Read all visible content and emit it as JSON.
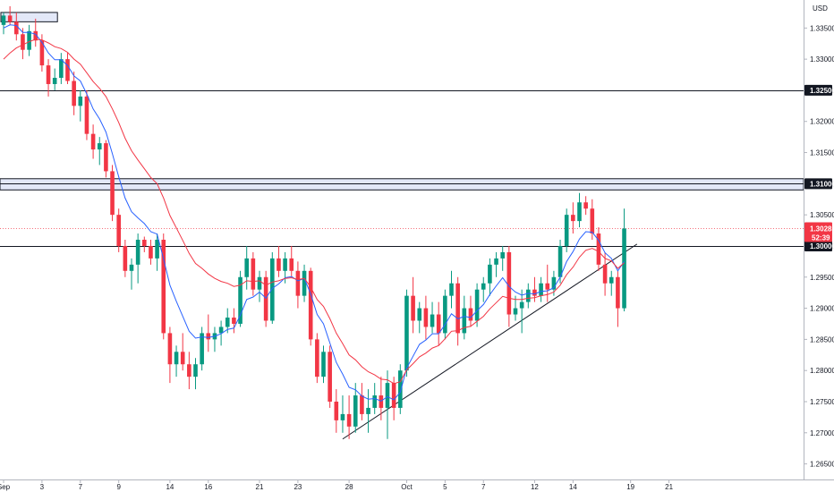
{
  "chart_data": {
    "type": "candlestick",
    "currency": "USD",
    "ylim": [
      1.2625,
      1.3395
    ],
    "y_ticks": [
      "1.33500",
      "1.33000",
      "1.32500",
      "1.32000",
      "1.31500",
      "1.31000",
      "1.30500",
      "1.30000",
      "1.29500",
      "1.29000",
      "1.28500",
      "1.28000",
      "1.27500",
      "1.27000",
      "1.26500"
    ],
    "x_labels": [
      {
        "label": "Sep",
        "index": 0
      },
      {
        "label": "3",
        "index": 6
      },
      {
        "label": "7",
        "index": 12
      },
      {
        "label": "9",
        "index": 18
      },
      {
        "label": "14",
        "index": 26
      },
      {
        "label": "16",
        "index": 32
      },
      {
        "label": "21",
        "index": 40
      },
      {
        "label": "23",
        "index": 46
      },
      {
        "label": "28",
        "index": 54
      },
      {
        "label": "Oct",
        "index": 63
      },
      {
        "label": "5",
        "index": 69
      },
      {
        "label": "7",
        "index": 75
      },
      {
        "label": "12",
        "index": 83
      },
      {
        "label": "14",
        "index": 89
      },
      {
        "label": "19",
        "index": 98
      },
      {
        "label": "21",
        "index": 104
      }
    ],
    "horizontal_levels": [
      {
        "value": 1.325,
        "label": "1.32500",
        "badge_bg": "#131722",
        "badge_fg": "#ffffff"
      },
      {
        "value": 1.31,
        "label": "1.31000",
        "badge_bg": "#131722",
        "badge_fg": "#ffffff"
      },
      {
        "value": 1.3,
        "label": "1.30000",
        "badge_bg": "#131722",
        "badge_fg": "#ffffff"
      }
    ],
    "zones": [
      {
        "from": 1.309,
        "to": 1.3108
      },
      {
        "from": 1.336,
        "to": 1.3375,
        "x_from": 0,
        "x_to": 8
      }
    ],
    "trendline": {
      "from": {
        "index": 53,
        "value": 1.269
      },
      "to": {
        "index": 99,
        "value": 1.3003
      }
    },
    "current_price": {
      "label": "1.30285",
      "countdown": "52:39",
      "value": 1.30285,
      "color": "#f23645"
    },
    "colors": {
      "up": "#089981",
      "down": "#f23645",
      "ema_fast": "#2962ff",
      "ema_slow": "#f23645",
      "level": "#131722",
      "zone_fill": "#e3e8f8",
      "zone_border": "#131722"
    },
    "series": [
      {
        "name": "",
        "type": "ohlc",
        "values": [
          [
            1.3355,
            1.3375,
            1.334,
            1.337
          ],
          [
            1.337,
            1.3385,
            1.3355,
            1.336
          ],
          [
            1.336,
            1.3375,
            1.333,
            1.334
          ],
          [
            1.334,
            1.335,
            1.33,
            1.3315
          ],
          [
            1.3315,
            1.3355,
            1.3305,
            1.3345
          ],
          [
            1.3345,
            1.3365,
            1.332,
            1.333
          ],
          [
            1.333,
            1.334,
            1.328,
            1.329
          ],
          [
            1.329,
            1.33,
            1.324,
            1.326
          ],
          [
            1.326,
            1.3285,
            1.325,
            1.327
          ],
          [
            1.327,
            1.331,
            1.326,
            1.33
          ],
          [
            1.33,
            1.331,
            1.326,
            1.3265
          ],
          [
            1.3265,
            1.328,
            1.321,
            1.3225
          ],
          [
            1.3225,
            1.325,
            1.32,
            1.324
          ],
          [
            1.324,
            1.325,
            1.317,
            1.318
          ],
          [
            1.318,
            1.3195,
            1.314,
            1.3155
          ],
          [
            1.3155,
            1.3175,
            1.313,
            1.3165
          ],
          [
            1.3165,
            1.317,
            1.311,
            1.312
          ],
          [
            1.312,
            1.313,
            1.304,
            1.305
          ],
          [
            1.305,
            1.306,
            1.299,
            1.3
          ],
          [
            1.3,
            1.301,
            1.295,
            1.296
          ],
          [
            1.296,
            1.298,
            1.293,
            1.297
          ],
          [
            1.297,
            1.302,
            1.294,
            1.301
          ],
          [
            1.301,
            1.3015,
            1.299,
            1.3
          ],
          [
            1.3,
            1.301,
            1.297,
            1.298
          ],
          [
            1.298,
            1.302,
            1.296,
            1.301
          ],
          [
            1.301,
            1.302,
            1.285,
            1.286
          ],
          [
            1.286,
            1.287,
            1.278,
            1.281
          ],
          [
            1.281,
            1.284,
            1.279,
            1.283
          ],
          [
            1.283,
            1.286,
            1.28,
            1.281
          ],
          [
            1.281,
            1.283,
            1.277,
            1.279
          ],
          [
            1.279,
            1.282,
            1.277,
            1.281
          ],
          [
            1.281,
            1.287,
            1.28,
            1.286
          ],
          [
            1.286,
            1.289,
            1.283,
            1.285
          ],
          [
            1.285,
            1.287,
            1.283,
            1.286
          ],
          [
            1.286,
            1.288,
            1.284,
            1.287
          ],
          [
            1.287,
            1.29,
            1.286,
            1.2885
          ],
          [
            1.2885,
            1.29,
            1.286,
            1.2875
          ],
          [
            1.2875,
            1.296,
            1.287,
            1.295
          ],
          [
            1.295,
            1.3,
            1.293,
            1.298
          ],
          [
            1.298,
            1.299,
            1.292,
            1.293
          ],
          [
            1.293,
            1.296,
            1.291,
            1.295
          ],
          [
            1.295,
            1.296,
            1.287,
            1.288
          ],
          [
            1.288,
            1.299,
            1.2875,
            1.298
          ],
          [
            1.298,
            1.3,
            1.295,
            1.296
          ],
          [
            1.296,
            1.299,
            1.294,
            1.298
          ],
          [
            1.298,
            1.3,
            1.295,
            1.296
          ],
          [
            1.296,
            1.2975,
            1.29,
            1.292
          ],
          [
            1.292,
            1.297,
            1.291,
            1.296
          ],
          [
            1.296,
            1.2965,
            1.284,
            1.285
          ],
          [
            1.285,
            1.286,
            1.278,
            1.279
          ],
          [
            1.279,
            1.284,
            1.278,
            1.283
          ],
          [
            1.283,
            1.284,
            1.274,
            1.275
          ],
          [
            1.275,
            1.277,
            1.27,
            1.272
          ],
          [
            1.272,
            1.276,
            1.27,
            1.273
          ],
          [
            1.273,
            1.276,
            1.269,
            1.271
          ],
          [
            1.271,
            1.278,
            1.27,
            1.276
          ],
          [
            1.276,
            1.278,
            1.272,
            1.273
          ],
          [
            1.273,
            1.277,
            1.27,
            1.274
          ],
          [
            1.274,
            1.278,
            1.273,
            1.276
          ],
          [
            1.276,
            1.279,
            1.272,
            1.274
          ],
          [
            1.274,
            1.28,
            1.269,
            1.278
          ],
          [
            1.278,
            1.279,
            1.272,
            1.274
          ],
          [
            1.274,
            1.281,
            1.273,
            1.28
          ],
          [
            1.28,
            1.293,
            1.279,
            1.292
          ],
          [
            1.292,
            1.295,
            1.286,
            1.288
          ],
          [
            1.288,
            1.291,
            1.286,
            1.29
          ],
          [
            1.29,
            1.292,
            1.285,
            1.287
          ],
          [
            1.287,
            1.291,
            1.286,
            1.289
          ],
          [
            1.289,
            1.291,
            1.284,
            1.286
          ],
          [
            1.286,
            1.293,
            1.285,
            1.292
          ],
          [
            1.292,
            1.296,
            1.29,
            1.294
          ],
          [
            1.294,
            1.295,
            1.284,
            1.286
          ],
          [
            1.286,
            1.292,
            1.285,
            1.29
          ],
          [
            1.29,
            1.292,
            1.287,
            1.288
          ],
          [
            1.288,
            1.294,
            1.287,
            1.293
          ],
          [
            1.293,
            1.295,
            1.291,
            1.294
          ],
          [
            1.294,
            1.298,
            1.292,
            1.297
          ],
          [
            1.297,
            1.299,
            1.295,
            1.298
          ],
          [
            1.298,
            1.3,
            1.296,
            1.299
          ],
          [
            1.299,
            1.3,
            1.287,
            1.289
          ],
          [
            1.289,
            1.292,
            1.288,
            1.29
          ],
          [
            1.29,
            1.293,
            1.286,
            1.291
          ],
          [
            1.291,
            1.294,
            1.29,
            1.293
          ],
          [
            1.293,
            1.295,
            1.291,
            1.292
          ],
          [
            1.292,
            1.295,
            1.291,
            1.294
          ],
          [
            1.294,
            1.297,
            1.291,
            1.293
          ],
          [
            1.293,
            1.296,
            1.292,
            1.295
          ],
          [
            1.295,
            1.301,
            1.294,
            1.3
          ],
          [
            1.3,
            1.306,
            1.299,
            1.305
          ],
          [
            1.305,
            1.307,
            1.302,
            1.304
          ],
          [
            1.304,
            1.3085,
            1.303,
            1.307
          ],
          [
            1.307,
            1.308,
            1.305,
            1.306
          ],
          [
            1.306,
            1.3075,
            1.301,
            1.302
          ],
          [
            1.302,
            1.303,
            1.296,
            1.297
          ],
          [
            1.297,
            1.299,
            1.292,
            1.294
          ],
          [
            1.294,
            1.296,
            1.292,
            1.295
          ],
          [
            1.295,
            1.296,
            1.287,
            1.29
          ],
          [
            1.29,
            1.306,
            1.2895,
            1.3028
          ]
        ]
      },
      {
        "name": "",
        "type": "ema",
        "color": "#2962ff",
        "values": [
          1.335,
          1.3355,
          1.3354,
          1.3343,
          1.3343,
          1.334,
          1.3327,
          1.331,
          1.3299,
          1.3299,
          1.329,
          1.3273,
          1.3265,
          1.3244,
          1.322,
          1.3204,
          1.3183,
          1.3148,
          1.3111,
          1.3077,
          1.3055,
          1.3045,
          1.3036,
          1.3023,
          1.3019,
          1.2979,
          1.2937,
          1.2911,
          1.2887,
          1.2863,
          1.2852,
          1.2854,
          1.2853,
          1.2855,
          1.2859,
          1.2866,
          1.2868,
          1.2889,
          1.2914,
          1.2918,
          1.2926,
          1.2916,
          1.2932,
          1.2939,
          1.2949,
          1.2951,
          1.2944,
          1.2948,
          1.2923,
          1.289,
          1.2875,
          1.2844,
          1.2813,
          1.2794,
          1.2773,
          1.2769,
          1.2759,
          1.2754,
          1.2755,
          1.2751,
          1.2758,
          1.2753,
          1.2765,
          1.2804,
          1.2823,
          1.2842,
          1.2849,
          1.2859,
          1.2859,
          1.2874,
          1.2891,
          1.2883,
          1.2887,
          1.2885,
          1.2896,
          1.2906,
          1.2922,
          1.2936,
          1.2949,
          1.2935,
          1.2926,
          1.2921,
          1.2924,
          1.2923,
          1.2927,
          1.2928,
          1.2933,
          1.295,
          1.2975,
          1.2991,
          1.3011,
          1.3023,
          1.3022,
          1.3009,
          1.2989,
          1.298,
          1.296,
          1.2975
        ]
      },
      {
        "name": "",
        "type": "ema",
        "color": "#f23645",
        "values": [
          1.33,
          1.331,
          1.3318,
          1.3323,
          1.3328,
          1.3332,
          1.3331,
          1.3326,
          1.332,
          1.3317,
          1.3311,
          1.33,
          1.3292,
          1.3278,
          1.3264,
          1.3253,
          1.324,
          1.322,
          1.3198,
          1.3173,
          1.3153,
          1.3138,
          1.3124,
          1.311,
          1.31,
          1.3077,
          1.3049,
          1.3029,
          1.3009,
          1.2988,
          1.2972,
          1.2964,
          1.2955,
          1.2948,
          1.2943,
          1.294,
          1.2935,
          1.2937,
          1.2944,
          1.2943,
          1.2944,
          1.2937,
          1.2942,
          1.2944,
          1.2948,
          1.2949,
          1.2946,
          1.2948,
          1.2934,
          1.2914,
          1.2903,
          1.2883,
          1.286,
          1.2843,
          1.2825,
          1.2817,
          1.2806,
          1.2798,
          1.2793,
          1.2786,
          1.2785,
          1.2779,
          1.2782,
          1.2801,
          1.2811,
          1.2822,
          1.2828,
          1.2836,
          1.284,
          1.2851,
          1.2863,
          1.2864,
          1.2869,
          1.2871,
          1.2879,
          1.2887,
          1.2899,
          1.2909,
          1.2919,
          1.2916,
          1.2914,
          1.2914,
          1.2916,
          1.2917,
          1.292,
          1.2922,
          1.2926,
          1.2937,
          1.2954,
          1.2966,
          1.2982,
          1.2993,
          1.2996,
          1.2991,
          1.298,
          1.2976,
          1.2964,
          1.2973
        ]
      }
    ]
  }
}
